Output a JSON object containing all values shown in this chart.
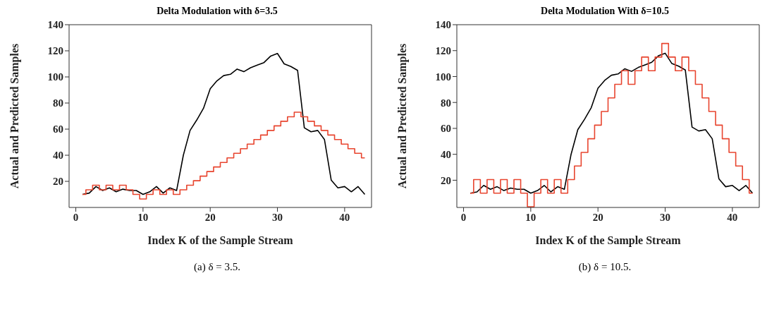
{
  "chart_data": [
    {
      "type": "line",
      "title": "Delta Modulation with δ=3.5",
      "xlabel": "Index K of the Sample Stream",
      "ylabel": "Actual and Predicted Samples",
      "annotations": [
        "(a) δ = 3.5."
      ],
      "xlim": [
        -1,
        44
      ],
      "xticks": [
        0,
        10,
        20,
        30,
        40
      ],
      "ylim": [
        0,
        140
      ],
      "yticks": [
        20,
        40,
        60,
        80,
        100,
        120,
        140
      ],
      "grid": false,
      "legend": false,
      "marker": "none",
      "line_style": "solid",
      "x": [
        1,
        2,
        3,
        4,
        5,
        6,
        7,
        8,
        9,
        10,
        11,
        12,
        13,
        14,
        15,
        16,
        17,
        18,
        19,
        20,
        21,
        22,
        23,
        24,
        25,
        26,
        27,
        28,
        29,
        30,
        31,
        32,
        33,
        34,
        35,
        36,
        37,
        38,
        39,
        40,
        41,
        42,
        43
      ],
      "series": [
        {
          "type": "line",
          "color": "#000000",
          "values": [
            10,
            11,
            16,
            13,
            15,
            12,
            14,
            13,
            13,
            10,
            12,
            16,
            11,
            15,
            13,
            40,
            59,
            67,
            76,
            91,
            97,
            101,
            102,
            106,
            104,
            107,
            109,
            111,
            116,
            118,
            110,
            108,
            105,
            61,
            58,
            59,
            52,
            21,
            15,
            16,
            12,
            16,
            10
          ]
        },
        {
          "type": "step",
          "color": "#e8452f",
          "values": [
            10,
            13.5,
            17,
            13.5,
            17,
            13.5,
            17,
            13.5,
            10,
            6.5,
            10,
            13.5,
            10,
            13.5,
            10,
            13.5,
            17,
            20.5,
            24,
            27.5,
            31,
            34.5,
            38,
            41.5,
            45,
            48.5,
            52,
            55.5,
            59,
            62.5,
            66,
            69.5,
            73,
            69.5,
            66,
            62.5,
            59,
            55.5,
            52,
            48.5,
            45,
            41.5,
            38
          ]
        }
      ]
    },
    {
      "type": "line",
      "title": "Delta Modulation With δ=10.5",
      "xlabel": "Index K of the Sample Stream",
      "ylabel": "Actual and Predicted Samples",
      "annotations": [
        "(b) δ = 10.5."
      ],
      "xlim": [
        -1,
        44
      ],
      "xticks": [
        0,
        10,
        20,
        30,
        40
      ],
      "ylim": [
        -1,
        140
      ],
      "yticks": [
        20,
        40,
        60,
        80,
        100,
        120,
        140
      ],
      "grid": false,
      "legend": false,
      "marker": "none",
      "line_style": "solid",
      "x": [
        1,
        2,
        3,
        4,
        5,
        6,
        7,
        8,
        9,
        10,
        11,
        12,
        13,
        14,
        15,
        16,
        17,
        18,
        19,
        20,
        21,
        22,
        23,
        24,
        25,
        26,
        27,
        28,
        29,
        30,
        31,
        32,
        33,
        34,
        35,
        36,
        37,
        38,
        39,
        40,
        41,
        42,
        43
      ],
      "series": [
        {
          "type": "line",
          "color": "#000000",
          "values": [
            10,
            11,
            16,
            13,
            15,
            12,
            14,
            13,
            13,
            10,
            12,
            16,
            11,
            15,
            13,
            40,
            59,
            67,
            76,
            91,
            97,
            101,
            102,
            106,
            104,
            107,
            109,
            111,
            116,
            118,
            110,
            108,
            105,
            61,
            58,
            59,
            52,
            21,
            15,
            16,
            12,
            16,
            10
          ]
        },
        {
          "type": "step",
          "color": "#e8452f",
          "values": [
            10,
            20.5,
            10,
            20.5,
            10,
            20.5,
            10,
            20.5,
            10,
            -0.5,
            10,
            20.5,
            10,
            20.5,
            10,
            20.5,
            31,
            41.5,
            52,
            62.5,
            73,
            83.5,
            94,
            104.5,
            94,
            104.5,
            115,
            104.5,
            115,
            125.5,
            115,
            104.5,
            115,
            104.5,
            94,
            83.5,
            73,
            62.5,
            52,
            41.5,
            31,
            20.5,
            10
          ]
        }
      ]
    }
  ]
}
